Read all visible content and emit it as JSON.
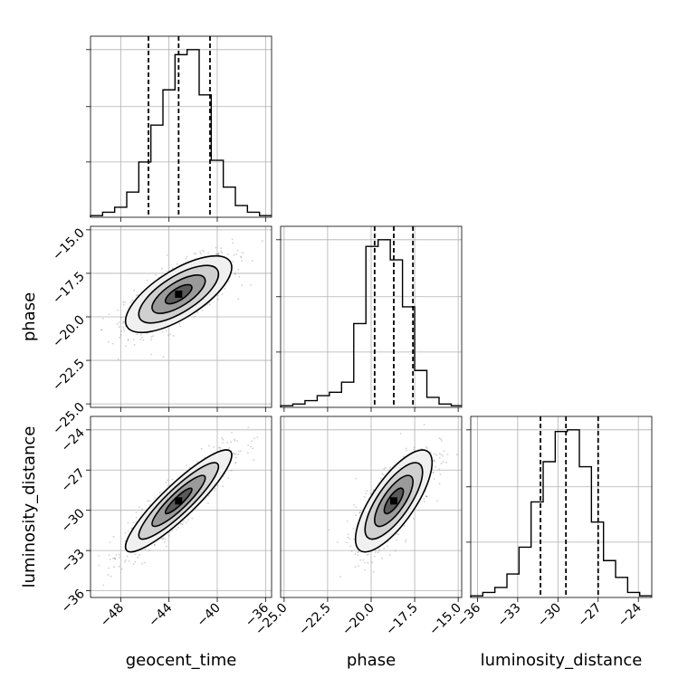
{
  "chart_data": {
    "type": "corner",
    "parameters": [
      {
        "name": "geocent_time",
        "label": "geocent_time",
        "range": [
          -50.5,
          -35.5
        ],
        "ticks": [
          -48,
          -44,
          -40,
          -36
        ],
        "tick_labels": [
          "−48",
          "−44",
          "−40",
          "−36"
        ],
        "quantiles": [
          -45.7,
          -43.2,
          -40.6
        ]
      },
      {
        "name": "phase",
        "label": "phase",
        "range": [
          -25.2,
          -14.8
        ],
        "ticks": [
          -25.0,
          -22.5,
          -20.0,
          -17.5,
          -15.0
        ],
        "tick_labels": [
          "−25.0",
          "−22.5",
          "−20.0",
          "−17.5",
          "−15.0"
        ],
        "quantiles": [
          -19.8,
          -18.7,
          -17.6
        ]
      },
      {
        "name": "luminosity_distance",
        "label": "luminosity_distance",
        "range": [
          -36.5,
          -23.0
        ],
        "ticks": [
          -36,
          -33,
          -30,
          -27,
          -24
        ],
        "tick_labels": [
          "−36",
          "−33",
          "−30",
          "−27",
          "−24"
        ],
        "quantiles": [
          -31.3,
          -29.4,
          -27.0
        ]
      }
    ],
    "histograms": [
      {
        "param": "geocent_time",
        "bin_edges": [
          -50.5,
          -49.5,
          -48.5,
          -47.5,
          -46.5,
          -45.5,
          -44.5,
          -43.5,
          -42.5,
          -41.5,
          -40.5,
          -39.5,
          -38.5,
          -37.5,
          -36.5,
          -35.5
        ],
        "counts": [
          1,
          3,
          6,
          15,
          33,
          55,
          76,
          97,
          100,
          73,
          34,
          18,
          7,
          3,
          1
        ]
      },
      {
        "param": "phase",
        "bin_edges": [
          -25.2,
          -24.5,
          -23.8,
          -23.1,
          -22.4,
          -21.7,
          -21.0,
          -20.3,
          -19.6,
          -18.9,
          -18.2,
          -17.5,
          -16.8,
          -16.1,
          -15.4,
          -14.8
        ],
        "counts": [
          1,
          2,
          4,
          7,
          9,
          15,
          50,
          96,
          100,
          88,
          60,
          22,
          6,
          2,
          1
        ]
      },
      {
        "param": "luminosity_distance",
        "bin_edges": [
          -36.5,
          -35.6,
          -34.7,
          -33.8,
          -32.9,
          -32.0,
          -31.1,
          -30.2,
          -29.3,
          -28.4,
          -27.5,
          -26.6,
          -25.7,
          -24.8,
          -23.9,
          -23.0
        ],
        "counts": [
          1,
          3,
          6,
          14,
          30,
          57,
          81,
          99,
          100,
          78,
          45,
          22,
          12,
          3,
          1
        ]
      }
    ],
    "pairs": [
      {
        "x": "geocent_time",
        "y": "phase",
        "mean": [
          -43.2,
          -18.7
        ],
        "sd": [
          2.2,
          1.1
        ],
        "rho": 0.7
      },
      {
        "x": "geocent_time",
        "y": "luminosity_distance",
        "mean": [
          -43.2,
          -29.3
        ],
        "sd": [
          2.2,
          1.9
        ],
        "rho": 0.9
      },
      {
        "x": "phase",
        "y": "luminosity_distance",
        "mean": [
          -18.7,
          -29.3
        ],
        "sd": [
          1.1,
          1.9
        ],
        "rho": 0.75
      }
    ],
    "grid": true,
    "colors": {
      "line": "#000000",
      "grid": "#b0b0b0",
      "points": "#777777"
    }
  }
}
